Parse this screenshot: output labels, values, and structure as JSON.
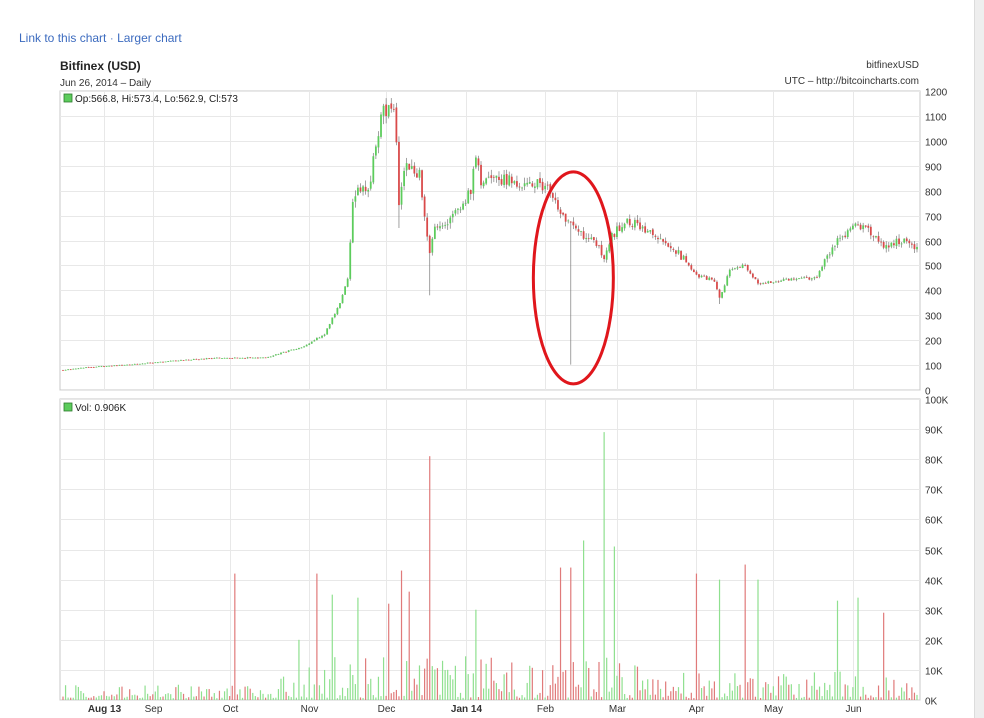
{
  "links": {
    "link_to_chart": "Link to this chart",
    "separator": "·",
    "larger_chart": "Larger chart"
  },
  "header": {
    "title": "Bitfinex (USD)",
    "subtitle": "Jun 26, 2014 – Daily",
    "symbol": "bitfinexUSD",
    "source": "UTC – http://bitcoincharts.com"
  },
  "legend": {
    "ohlc": "Op:566.8, Hi:573.4, Lo:562.9, Cl:573",
    "vol": "Vol: 0.906K"
  },
  "colors": {
    "up": "#5ccc5c",
    "down": "#d94a4a",
    "annotation": "#e0161c",
    "grid": "#e8e8e8",
    "axis": "#888888"
  },
  "chart_data": [
    {
      "type": "candlestick",
      "title": "Bitfinex (USD)",
      "ylim": [
        0,
        1200
      ],
      "y_ticks": [
        "1200",
        "1100",
        "1000",
        "900",
        "800",
        "700",
        "600",
        "500",
        "400",
        "300",
        "200",
        "100",
        "0"
      ],
      "x_ticks": [
        "Aug 13",
        "Sep",
        "Oct",
        "Nov",
        "Dec",
        "Jan 14",
        "Feb",
        "Mar",
        "Apr",
        "May",
        "Jun"
      ],
      "x_range": [
        "2013-07-28",
        "2014-06-26"
      ],
      "grid": true,
      "price_anchors": [
        [
          "2013-07-28",
          80
        ],
        [
          "2013-08-05",
          90
        ],
        [
          "2013-08-20",
          100
        ],
        [
          "2013-09-10",
          118
        ],
        [
          "2013-09-25",
          128
        ],
        [
          "2013-10-15",
          130
        ],
        [
          "2013-10-30",
          175
        ],
        [
          "2013-11-07",
          225
        ],
        [
          "2013-11-13",
          350
        ],
        [
          "2013-11-16",
          450
        ],
        [
          "2013-11-18",
          750
        ],
        [
          "2013-11-20",
          800
        ],
        [
          "2013-11-25",
          830
        ],
        [
          "2013-11-27",
          1000
        ],
        [
          "2013-11-30",
          1130
        ],
        [
          "2013-12-04",
          1120
        ],
        [
          "2013-12-05",
          1020
        ],
        [
          "2013-12-06",
          760
        ],
        [
          "2013-12-08",
          900
        ],
        [
          "2013-12-11",
          880
        ],
        [
          "2013-12-14",
          870
        ],
        [
          "2013-12-16",
          690
        ],
        [
          "2013-12-18",
          550
        ],
        [
          "2013-12-20",
          640
        ],
        [
          "2013-12-27",
          700
        ],
        [
          "2014-01-03",
          800
        ],
        [
          "2014-01-05",
          950
        ],
        [
          "2014-01-07",
          820
        ],
        [
          "2014-01-12",
          850
        ],
        [
          "2014-01-20",
          840
        ],
        [
          "2014-01-31",
          820
        ],
        [
          "2014-02-05",
          780
        ],
        [
          "2014-02-07",
          700
        ],
        [
          "2014-02-10",
          690
        ],
        [
          "2014-02-15",
          630
        ],
        [
          "2014-02-20",
          600
        ],
        [
          "2014-02-24",
          540
        ],
        [
          "2014-02-27",
          620
        ],
        [
          "2014-03-05",
          680
        ],
        [
          "2014-03-20",
          600
        ],
        [
          "2014-03-25",
          550
        ],
        [
          "2014-04-01",
          460
        ],
        [
          "2014-04-08",
          440
        ],
        [
          "2014-04-10",
          370
        ],
        [
          "2014-04-14",
          480
        ],
        [
          "2014-04-20",
          500
        ],
        [
          "2014-04-25",
          430
        ],
        [
          "2014-05-05",
          440
        ],
        [
          "2014-05-18",
          450
        ],
        [
          "2014-05-20",
          500
        ],
        [
          "2014-05-25",
          590
        ],
        [
          "2014-06-02",
          660
        ],
        [
          "2014-06-06",
          650
        ],
        [
          "2014-06-12",
          580
        ],
        [
          "2014-06-20",
          600
        ],
        [
          "2014-06-26",
          573
        ]
      ],
      "spikes": [
        {
          "date": "2014-02-11",
          "low": 102
        },
        {
          "date": "2013-12-06",
          "low": 650
        },
        {
          "date": "2013-12-18",
          "low": 380
        },
        {
          "date": "2014-04-10",
          "low": 345
        }
      ],
      "annotation": {
        "type": "ellipse",
        "center_date": "2014-02-12",
        "center_price": 450,
        "color": "#e0161c"
      }
    },
    {
      "type": "bar",
      "title": "Volume",
      "ylim": [
        0,
        100000
      ],
      "y_ticks": [
        "100K",
        "90K",
        "80K",
        "70K",
        "60K",
        "50K",
        "40K",
        "30K",
        "20K",
        "10K",
        "0K"
      ],
      "big_bars": [
        {
          "date": "2013-10-03",
          "value": 42000,
          "dir": "down"
        },
        {
          "date": "2013-10-28",
          "value": 20000,
          "dir": "up"
        },
        {
          "date": "2013-11-04",
          "value": 42000,
          "dir": "down"
        },
        {
          "date": "2013-11-10",
          "value": 35000,
          "dir": "up"
        },
        {
          "date": "2013-11-20",
          "value": 34000,
          "dir": "up"
        },
        {
          "date": "2013-12-02",
          "value": 32000,
          "dir": "down"
        },
        {
          "date": "2013-12-07",
          "value": 43000,
          "dir": "down"
        },
        {
          "date": "2013-12-10",
          "value": 36000,
          "dir": "down"
        },
        {
          "date": "2013-12-18",
          "value": 81000,
          "dir": "down"
        },
        {
          "date": "2014-01-05",
          "value": 30000,
          "dir": "up"
        },
        {
          "date": "2014-02-07",
          "value": 44000,
          "dir": "down"
        },
        {
          "date": "2014-02-11",
          "value": 44000,
          "dir": "down"
        },
        {
          "date": "2014-02-16",
          "value": 53000,
          "dir": "up"
        },
        {
          "date": "2014-02-24",
          "value": 89000,
          "dir": "up"
        },
        {
          "date": "2014-02-28",
          "value": 51000,
          "dir": "up"
        },
        {
          "date": "2014-04-01",
          "value": 42000,
          "dir": "down"
        },
        {
          "date": "2014-04-10",
          "value": 40000,
          "dir": "up"
        },
        {
          "date": "2014-04-20",
          "value": 45000,
          "dir": "down"
        },
        {
          "date": "2014-04-25",
          "value": 40000,
          "dir": "up"
        },
        {
          "date": "2014-05-26",
          "value": 33000,
          "dir": "up"
        },
        {
          "date": "2014-06-03",
          "value": 34000,
          "dir": "up"
        },
        {
          "date": "2014-06-13",
          "value": 29000,
          "dir": "down"
        }
      ]
    }
  ]
}
